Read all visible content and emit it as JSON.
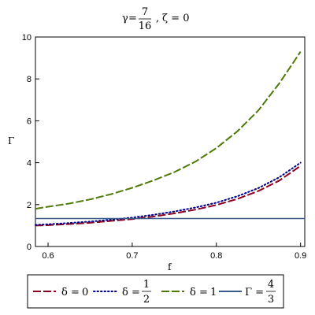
{
  "chart_data": {
    "type": "line",
    "title": {
      "gamma_symbol": "γ",
      "gamma_eq": "=",
      "gamma_num": "7",
      "gamma_den": "16",
      "sep": ",",
      "zeta_text": "ζ = 0"
    },
    "xlabel": "f",
    "ylabel": "Γ",
    "xlim": [
      0.585,
      0.905
    ],
    "ylim": [
      0,
      10
    ],
    "xticks": [
      0.6,
      0.7,
      0.8,
      0.9
    ],
    "xtick_labels": [
      "0.6",
      "0.7",
      "0.8",
      "0.9"
    ],
    "yticks": [
      0,
      2,
      4,
      6,
      8,
      10
    ],
    "ytick_labels": [
      "0",
      "2",
      "4",
      "6",
      "8",
      "10"
    ],
    "grid": false,
    "legend_position": "bottom",
    "series": [
      {
        "key": "delta0",
        "legend": {
          "prefix": "δ = ",
          "text": "0"
        },
        "color": "#8b0021",
        "dash": "10,3",
        "x": [
          0.585,
          0.6,
          0.625,
          0.65,
          0.675,
          0.7,
          0.725,
          0.75,
          0.775,
          0.8,
          0.825,
          0.85,
          0.875,
          0.9
        ],
        "y": [
          1.0,
          1.02,
          1.07,
          1.13,
          1.22,
          1.31,
          1.43,
          1.58,
          1.76,
          1.98,
          2.27,
          2.65,
          3.15,
          3.85
        ]
      },
      {
        "key": "delta_half",
        "legend": {
          "prefix": "δ = ",
          "num": "1",
          "den": "2"
        },
        "color": "#00008b",
        "dash": "1.5,3",
        "x": [
          0.585,
          0.6,
          0.625,
          0.65,
          0.675,
          0.7,
          0.725,
          0.75,
          0.775,
          0.8,
          0.825,
          0.85,
          0.875,
          0.9
        ],
        "y": [
          1.03,
          1.06,
          1.12,
          1.19,
          1.28,
          1.38,
          1.51,
          1.67,
          1.86,
          2.09,
          2.4,
          2.79,
          3.31,
          4.0
        ]
      },
      {
        "key": "delta1",
        "legend": {
          "prefix": "δ = ",
          "text": "1"
        },
        "color": "#4f7a0a",
        "dash": "10,3",
        "x": [
          0.585,
          0.6,
          0.625,
          0.65,
          0.675,
          0.7,
          0.725,
          0.75,
          0.775,
          0.8,
          0.825,
          0.85,
          0.875,
          0.9
        ],
        "y": [
          1.8,
          1.9,
          2.05,
          2.25,
          2.5,
          2.8,
          3.15,
          3.55,
          4.05,
          4.7,
          5.5,
          6.5,
          7.8,
          9.3
        ]
      },
      {
        "key": "gamma_const",
        "legend": {
          "prefix": "Γ = ",
          "num": "4",
          "den": "3"
        },
        "color": "#3b5a8c",
        "dash": "",
        "x": [
          0.585,
          0.905
        ],
        "y": [
          1.3333,
          1.3333
        ]
      }
    ]
  }
}
